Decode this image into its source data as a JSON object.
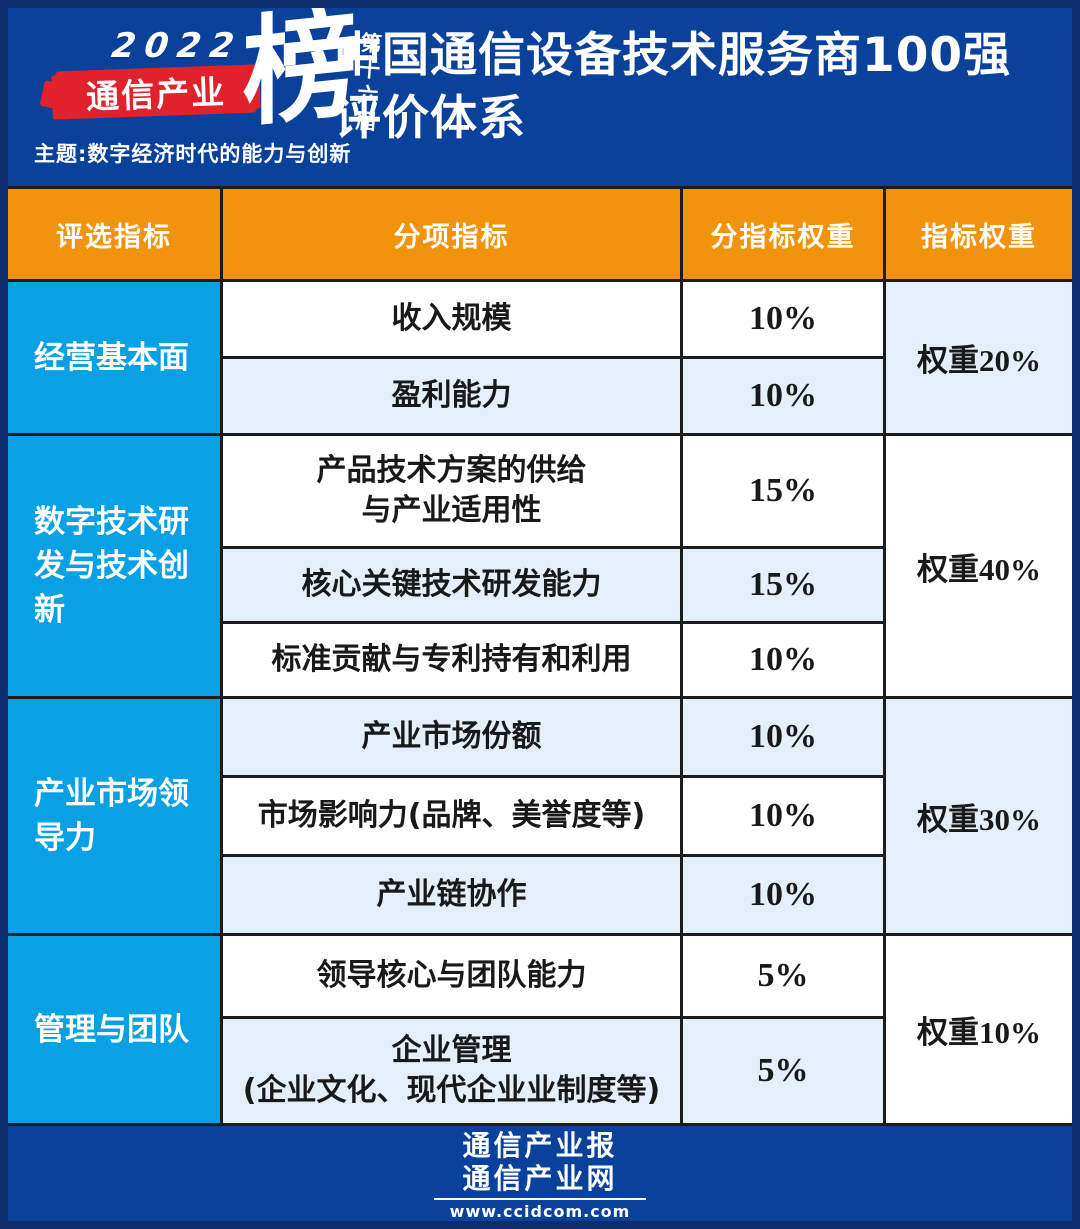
{
  "header": {
    "logo": {
      "year": "2022",
      "banner": "通信产业",
      "bang_character": "榜",
      "edition": "第十六届",
      "theme": "主题:数字经济时代的能力与创新"
    },
    "title_line1": "中国通信设备技术服务商100强",
    "title_line2": "评价体系"
  },
  "table": {
    "columns": [
      "评选指标",
      "分项指标",
      "分指标权重",
      "指标权重"
    ],
    "groups": [
      {
        "category": "经营基本面",
        "group_weight": "权重20%",
        "rows": [
          {
            "indicator": "收入规模",
            "weight": "10%"
          },
          {
            "indicator": "盈利能力",
            "weight": "10%"
          }
        ]
      },
      {
        "category": "数字技术研发与技术创新",
        "group_weight": "权重40%",
        "rows": [
          {
            "indicator": "产品技术方案的供给\n与产业适用性",
            "weight": "15%"
          },
          {
            "indicator": "核心关键技术研发能力",
            "weight": "15%"
          },
          {
            "indicator": "标准贡献与专利持有和利用",
            "weight": "10%"
          }
        ]
      },
      {
        "category": "产业市场领导力",
        "group_weight": "权重30%",
        "rows": [
          {
            "indicator": "产业市场份额",
            "weight": "10%"
          },
          {
            "indicator": "市场影响力(品牌、美誉度等)",
            "weight": "10%"
          },
          {
            "indicator": "产业链协作",
            "weight": "10%"
          }
        ]
      },
      {
        "category": "管理与团队",
        "group_weight": "权重10%",
        "rows": [
          {
            "indicator": "领导核心与团队能力",
            "weight": "5%"
          },
          {
            "indicator": "企业管理\n(企业文化、现代企业业制度等)",
            "weight": "5%"
          }
        ]
      }
    ]
  },
  "footer": {
    "brand_line1": "通信产业报",
    "brand_line2": "通信产业网",
    "url": "www.ccidcom.com"
  },
  "colors": {
    "navy_border": "#0d2c6b",
    "band_blue": "#0a419b",
    "orange": "#f2930d",
    "cyan": "#0aa0e4",
    "row_alt": "#e5effa",
    "red": "#e0222c",
    "text_dark": "#191919",
    "grid_line": "#1c1c1c"
  }
}
